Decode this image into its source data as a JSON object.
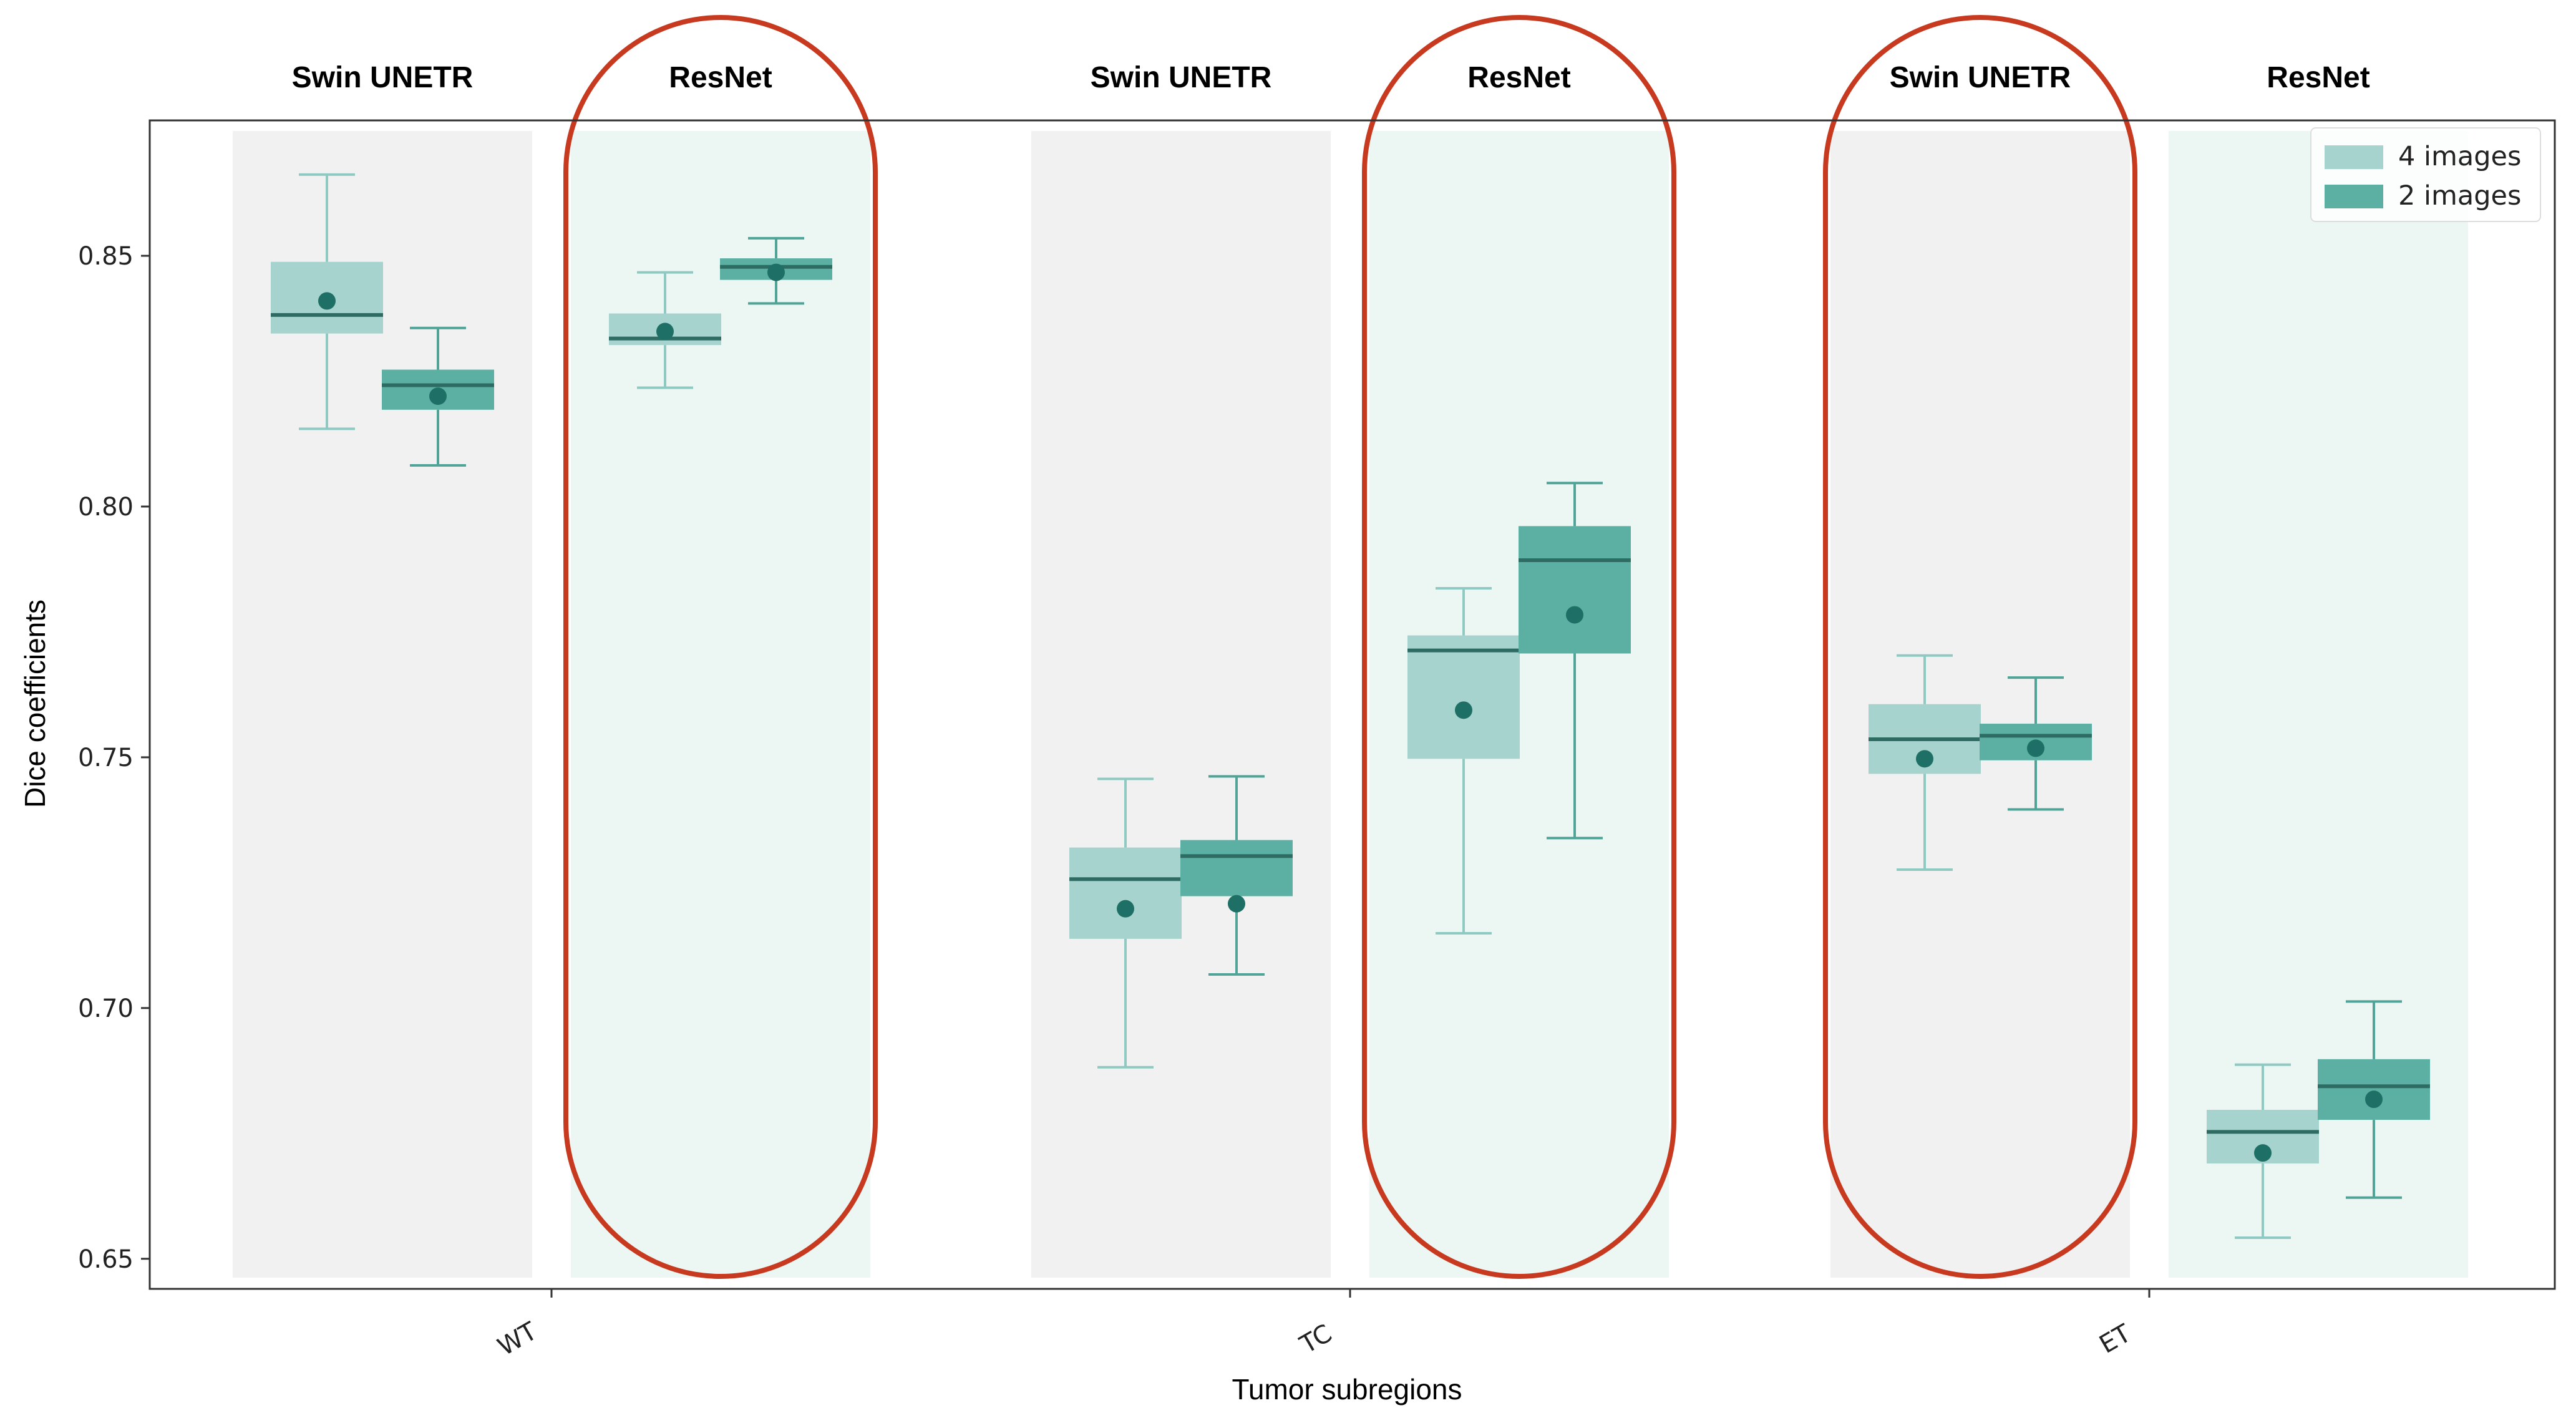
{
  "chart_data": {
    "type": "box",
    "xlabel": "Tumor subregions",
    "ylabel": "Dice coefficients",
    "ylim": [
      0.644,
      0.877
    ],
    "yticks": [
      "0.65",
      "0.70",
      "0.75",
      "0.80",
      "0.85"
    ],
    "categories": [
      "WT",
      "TC",
      "ET"
    ],
    "models": [
      "Swin UNETR",
      "ResNet"
    ],
    "highlighted_panels": [
      {
        "category": "WT",
        "model": "ResNet"
      },
      {
        "category": "TC",
        "model": "ResNet"
      },
      {
        "category": "ET",
        "model": "Swin UNETR"
      }
    ],
    "series": [
      {
        "name": "4 images",
        "color": "#a6d3cd",
        "line_color": "#8fcac2"
      },
      {
        "name": "2 images",
        "color": "#5bb0a3",
        "line_color": "#4fa397"
      }
    ],
    "mean_marker_color": "#1e6f65",
    "median_color": "#2d6b63",
    "panel_colors": {
      "Swin UNETR": "#f1f1f1",
      "ResNet": "#ecf6f3"
    },
    "highlight_color": "#c73a1f",
    "boxes": [
      {
        "category": "WT",
        "model": "Swin UNETR",
        "series": "4 images",
        "whisker_low": 0.8155,
        "q1": 0.8345,
        "median": 0.8382,
        "q3": 0.8488,
        "whisker_high": 0.8662,
        "mean": 0.841
      },
      {
        "category": "WT",
        "model": "Swin UNETR",
        "series": "2 images",
        "whisker_low": 0.8082,
        "q1": 0.8193,
        "median": 0.8242,
        "q3": 0.8273,
        "whisker_high": 0.8356,
        "mean": 0.822
      },
      {
        "category": "WT",
        "model": "ResNet",
        "series": "4 images",
        "whisker_low": 0.8237,
        "q1": 0.8322,
        "median": 0.8335,
        "q3": 0.8385,
        "whisker_high": 0.8467,
        "mean": 0.8349
      },
      {
        "category": "WT",
        "model": "ResNet",
        "series": "2 images",
        "whisker_low": 0.8405,
        "q1": 0.8452,
        "median": 0.8478,
        "q3": 0.8495,
        "whisker_high": 0.8535,
        "mean": 0.8467
      },
      {
        "category": "TC",
        "model": "Swin UNETR",
        "series": "4 images",
        "whisker_low": 0.6882,
        "q1": 0.7138,
        "median": 0.7257,
        "q3": 0.732,
        "whisker_high": 0.7457,
        "mean": 0.7198
      },
      {
        "category": "TC",
        "model": "Swin UNETR",
        "series": "2 images",
        "whisker_low": 0.7067,
        "q1": 0.7223,
        "median": 0.7303,
        "q3": 0.7335,
        "whisker_high": 0.7462,
        "mean": 0.7208
      },
      {
        "category": "TC",
        "model": "ResNet",
        "series": "4 images",
        "whisker_low": 0.7149,
        "q1": 0.7497,
        "median": 0.7713,
        "q3": 0.7743,
        "whisker_high": 0.7837,
        "mean": 0.7594
      },
      {
        "category": "TC",
        "model": "ResNet",
        "series": "2 images",
        "whisker_low": 0.7339,
        "q1": 0.7707,
        "median": 0.7893,
        "q3": 0.7961,
        "whisker_high": 0.8047,
        "mean": 0.7784
      },
      {
        "category": "ET",
        "model": "Swin UNETR",
        "series": "4 images",
        "whisker_low": 0.7276,
        "q1": 0.7467,
        "median": 0.7536,
        "q3": 0.7606,
        "whisker_high": 0.7703,
        "mean": 0.7497
      },
      {
        "category": "ET",
        "model": "Swin UNETR",
        "series": "2 images",
        "whisker_low": 0.7396,
        "q1": 0.7494,
        "median": 0.7543,
        "q3": 0.7567,
        "whisker_high": 0.7659,
        "mean": 0.7518
      },
      {
        "category": "ET",
        "model": "ResNet",
        "series": "4 images",
        "whisker_low": 0.6542,
        "q1": 0.669,
        "median": 0.6753,
        "q3": 0.6797,
        "whisker_high": 0.6887,
        "mean": 0.6711
      },
      {
        "category": "ET",
        "model": "ResNet",
        "series": "2 images",
        "whisker_low": 0.6622,
        "q1": 0.6777,
        "median": 0.6844,
        "q3": 0.6898,
        "whisker_high": 0.7013,
        "mean": 0.6818
      }
    ]
  }
}
